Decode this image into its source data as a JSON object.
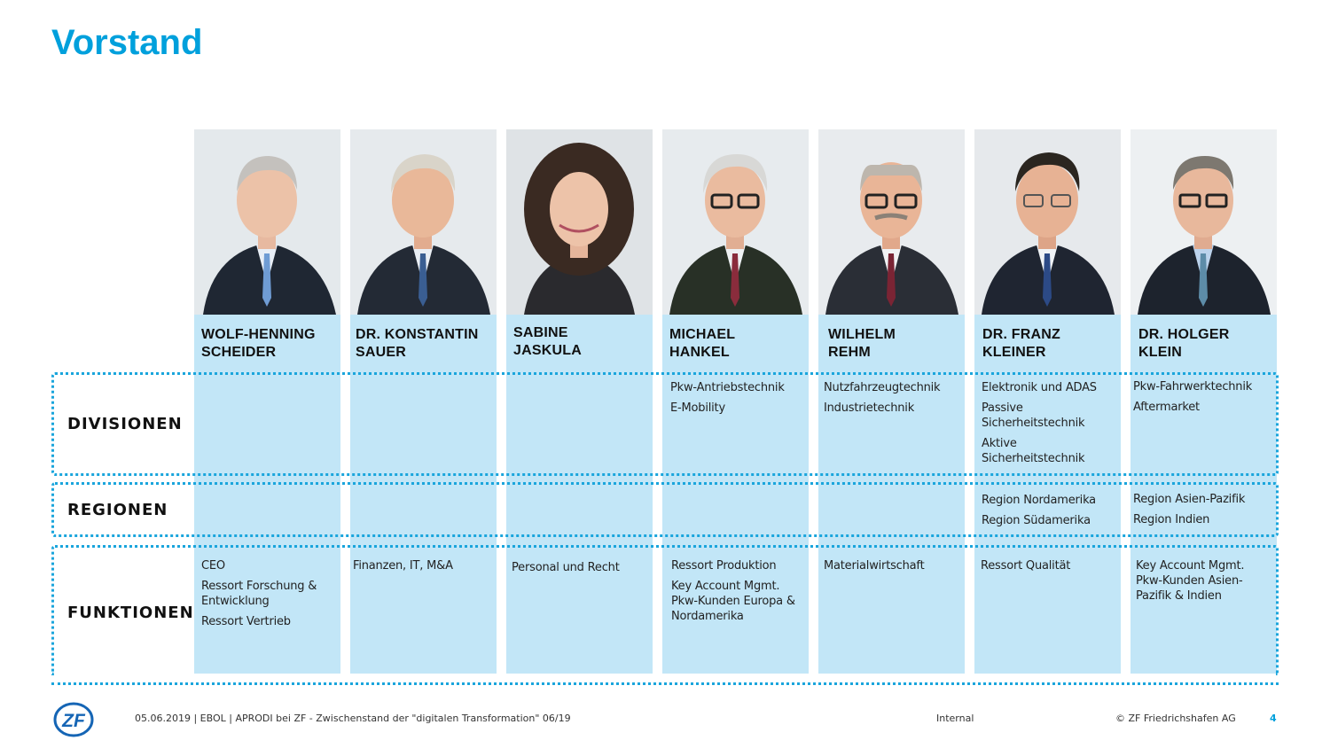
{
  "slide": {
    "title": "Vorstand"
  },
  "rows": {
    "divisionen": "DIVISIONEN",
    "regionen": "REGIONEN",
    "funktionen": "FUNKTIONEN"
  },
  "members": [
    {
      "name_line1": "WOLF-HENNING",
      "name_line2": "SCHEIDER",
      "divisionen": [],
      "regionen": [],
      "funktionen": [
        "CEO",
        "Ressort Forschung & Entwicklung",
        "Ressort Vertrieb"
      ]
    },
    {
      "name_line1": "DR. KONSTANTIN",
      "name_line2": "SAUER",
      "divisionen": [],
      "regionen": [],
      "funktionen": [
        "Finanzen, IT, M&A"
      ]
    },
    {
      "name_line1": "SABINE",
      "name_line2": "JASKULA",
      "divisionen": [],
      "regionen": [],
      "funktionen": [
        "Personal und Recht"
      ]
    },
    {
      "name_line1": "MICHAEL",
      "name_line2": "HANKEL",
      "divisionen": [
        "Pkw-Antriebstechnik",
        "E-Mobility"
      ],
      "regionen": [],
      "funktionen": [
        "Ressort Produktion",
        "Key Account Mgmt. Pkw-Kunden Europa & Nordamerika"
      ]
    },
    {
      "name_line1": "WILHELM",
      "name_line2": "REHM",
      "divisionen": [
        "Nutzfahrzeugtechnik",
        "Industrietechnik"
      ],
      "regionen": [],
      "funktionen": [
        "Materialwirtschaft"
      ]
    },
    {
      "name_line1": "DR. FRANZ",
      "name_line2": "KLEINER",
      "divisionen": [
        "Elektronik und ADAS",
        "Passive Sicherheitstechnik",
        "Aktive Sicherheitstechnik"
      ],
      "regionen": [
        "Region Nordamerika",
        "Region Südamerika"
      ],
      "funktionen": [
        "Ressort Qualität"
      ]
    },
    {
      "name_line1": "DR. HOLGER",
      "name_line2": "KLEIN",
      "divisionen": [
        "Pkw-Fahrwerktechnik",
        "Aftermarket"
      ],
      "regionen": [
        "Region Asien-Pazifik",
        "Region Indien"
      ],
      "funktionen": [
        "Key Account Mgmt. Pkw-Kunden Asien-Pazifik & Indien"
      ]
    }
  ],
  "footer": {
    "logo_text": "ZF",
    "date_info": "05.06.2019 | EBOL | APRODI bei ZF - Zwischenstand der \"digitalen Transformation\" 06/19",
    "classification": "Internal",
    "copyright": "© ZF Friedrichshafen AG",
    "page": "4"
  },
  "colors": {
    "accent": "#00a0dc",
    "column_fill": "#c2e6f7",
    "dotted_border": "#1aa5dc"
  }
}
